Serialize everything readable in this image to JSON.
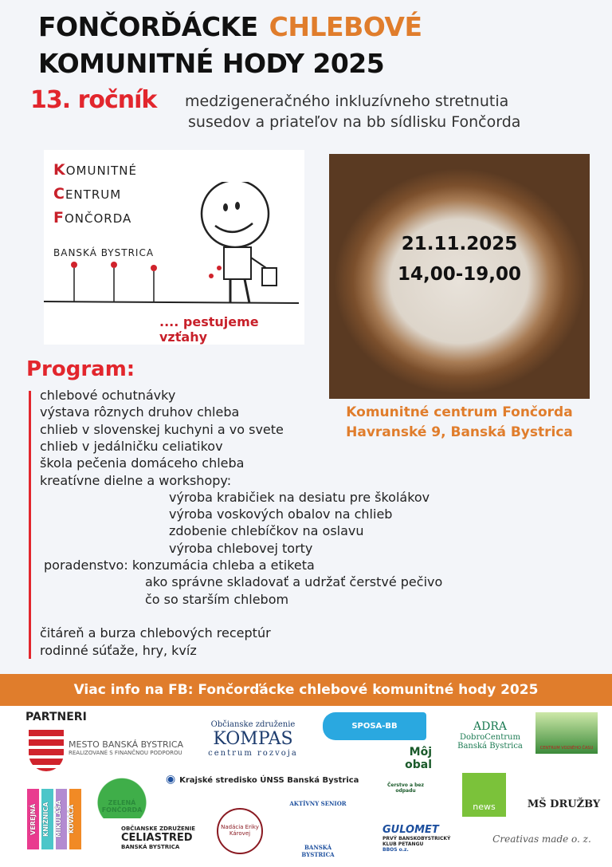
{
  "title": {
    "line1_a": "FONČORĎÁCKE",
    "line1_b": "CHLEBOVÉ",
    "line2": "KOMUNITNÉ HODY 2025"
  },
  "edition": "13. ročník",
  "subtitle": [
    "medzigeneračného  inkluzívneho stretnutia",
    "susedov a priateľov na bb sídlisku Fončorda"
  ],
  "logo": {
    "lines": [
      {
        "initial": "K",
        "rest": "OMUNITNÉ"
      },
      {
        "initial": "C",
        "rest": "ENTRUM"
      },
      {
        "initial": "F",
        "rest": "ONČORDA"
      }
    ],
    "city": "BANSKÁ  BYSTRICA",
    "motto": ".... pestujeme vzťahy"
  },
  "event": {
    "date": "21.11.2025",
    "time": "14,00-19,00",
    "venue": "Komunitné centrum Fončorda",
    "address": "Havranské 9, Banská Bystrica"
  },
  "program": {
    "heading": "Program:",
    "items": [
      {
        "text": "chlebové ochutnávky",
        "indent": 0
      },
      {
        "text": "výstava rôznych druhov chleba",
        "indent": 0
      },
      {
        "text": "chlieb v slovenskej kuchyni a vo svete",
        "indent": 0
      },
      {
        "text": "chlieb v jedálničku celiatikov",
        "indent": 0
      },
      {
        "text": "škola pečenia domáceho chleba",
        "indent": 0
      },
      {
        "text": "kreatívne dielne a workshopy:",
        "indent": 0
      },
      {
        "text": "výroba krabičiek na desiatu pre školákov",
        "indent": 2
      },
      {
        "text": "výroba voskových obalov na chlieb",
        "indent": 2
      },
      {
        "text": "zdobenie chlebíčkov na oslavu",
        "indent": 2
      },
      {
        "text": "výroba chlebovej torty",
        "indent": 2
      },
      {
        "text": "poradenstvo:  konzumácia chleba a etiketa",
        "indent": -1
      },
      {
        "text": "ako správne skladovať a udržať čerstvé pečivo",
        "indent": 1
      },
      {
        "text": "čo so starším chlebom",
        "indent": 1
      },
      {
        "text": "",
        "indent": 0
      },
      {
        "text": "čitáreň a burza chlebových receptúr",
        "indent": 0
      },
      {
        "text": "rodinné súťaže, hry, kvíz",
        "indent": 0
      }
    ]
  },
  "info_band": "Viac info na FB: Fončorďácke chlebové komunitné hody 2025",
  "partners": {
    "heading": "PARTNERI",
    "logos": [
      {
        "name": "MESTO BANSKÁ BYSTRICA",
        "sub": "REALIZOVANÉ S FINANČNOU PODPOROU"
      },
      {
        "name": "KOMPAS",
        "sub": "Občianske združenie",
        "sub2": "centrum rozvoja"
      },
      {
        "name": "SPOSA-BB"
      },
      {
        "name": "ADRA",
        "sub": "DobroCentrum",
        "sub2": "Banská Bystrica"
      },
      {
        "name": "CENTRUM VOĽNÉHO ČASU"
      },
      {
        "name": "Môj obal",
        "sub": "Čerstvo a bez odpadu"
      },
      {
        "name": "Krajské stredisko ÚNSS Banská Bystrica"
      },
      {
        "name": "ZELENÁ FONČORDA"
      },
      {
        "name": "news"
      },
      {
        "name": "MŠ DRUŽBY"
      },
      {
        "name": "VEREJNÁ KNIŽNICA MIKULÁŠA KOVÁČA"
      },
      {
        "name": "CELIASTRED",
        "sub": "OBČIANSKE ZDRUŽENIE",
        "sub2": "BANSKÁ BYSTRICA"
      },
      {
        "name": "Nadácia Eriky Károvej"
      },
      {
        "name": "AKTÍVNY SENIOR",
        "sub": "BANSKÁ BYSTRICA"
      },
      {
        "name": "GULOMET",
        "sub": "PRVÝ BANSKOBYSTRICKÝ KLUB PETANGU",
        "sub2": "BBOS o.z."
      },
      {
        "name": "Creativas made o. z."
      }
    ]
  },
  "colors": {
    "orange": "#e07d2c",
    "red": "#e2262d",
    "background": "#f3f5f9"
  }
}
